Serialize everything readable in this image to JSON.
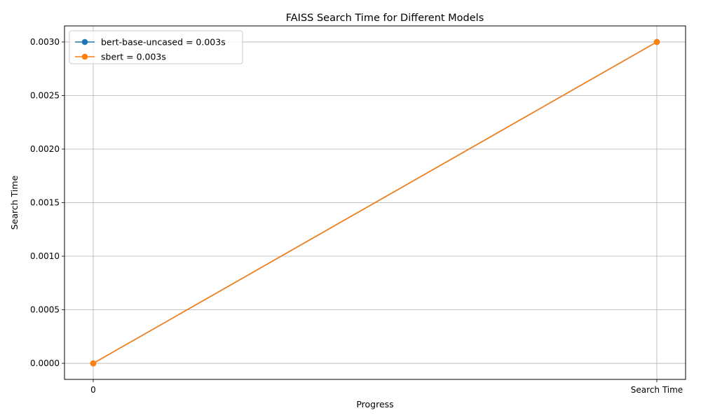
{
  "chart_data": {
    "type": "line",
    "title": "FAISS Search Time for Different Models",
    "xlabel": "Progress",
    "ylabel": "Search Time",
    "categories": [
      "0",
      "Search Time"
    ],
    "y_ticks": [
      "0.0000",
      "0.0005",
      "0.0010",
      "0.0015",
      "0.0020",
      "0.0025",
      "0.0030"
    ],
    "ylim": [
      -0.00015,
      0.00315
    ],
    "grid": true,
    "legend_position": "top-left",
    "series": [
      {
        "name": "bert-base-uncased = 0.003s",
        "values": [
          0,
          0.003
        ],
        "color": "#1f77b4"
      },
      {
        "name": "sbert = 0.003s",
        "values": [
          0,
          0.003
        ],
        "color": "#ff7f0e"
      }
    ]
  }
}
